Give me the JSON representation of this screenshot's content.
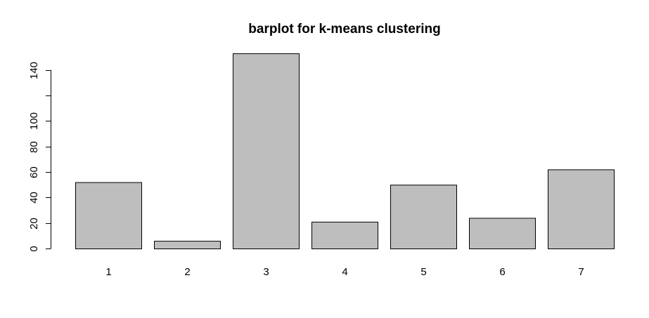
{
  "chart_data": {
    "type": "bar",
    "title": "barplot for k-means clustering",
    "xlabel": "",
    "ylabel": "",
    "categories": [
      "1",
      "2",
      "3",
      "4",
      "5",
      "6",
      "7"
    ],
    "values": [
      52,
      6,
      153,
      21,
      50,
      24,
      62
    ],
    "ylim": [
      0,
      153
    ],
    "yticks": [
      0,
      20,
      40,
      60,
      80,
      100,
      120,
      140
    ],
    "ytick_labels": [
      "0",
      "20",
      "40",
      "60",
      "80",
      "100",
      "",
      "140"
    ],
    "bar_color": "#bebebe",
    "border_color": "#000000",
    "grid": false,
    "legend": "none"
  }
}
